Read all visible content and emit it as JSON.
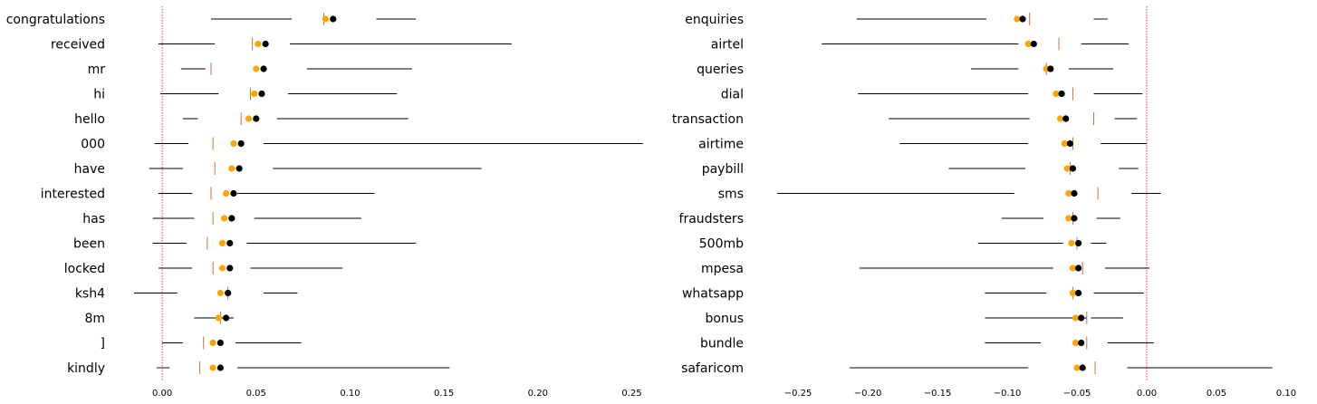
{
  "colors": {
    "mean_dot": "#000000",
    "alt_dot": "#ffa500",
    "median_tick": "#c8642a",
    "range_line": "#000000",
    "zero_line": "#ff0000"
  },
  "chart_data": [
    {
      "type": "dot-range",
      "title": "",
      "xlabel": "",
      "ylabel": "",
      "xlim": [
        -0.015,
        0.257
      ],
      "xticks": [
        0.0,
        0.05,
        0.1,
        0.15,
        0.2,
        0.25
      ],
      "xtick_labels": [
        "0.00",
        "0.05",
        "0.10",
        "0.15",
        "0.20",
        "0.25"
      ],
      "zero_line": 0,
      "grid": false,
      "rows": [
        {
          "label": "congratulations",
          "black": 0.091,
          "orange": 0.087,
          "median": 0.086,
          "segments": [
            [
              0.026,
              0.069
            ],
            [
              0.114,
              0.135
            ]
          ]
        },
        {
          "label": "received",
          "black": 0.055,
          "orange": 0.051,
          "median": 0.048,
          "segments": [
            [
              -0.002,
              0.028
            ],
            [
              0.068,
              0.186
            ]
          ]
        },
        {
          "label": "mr",
          "black": 0.054,
          "orange": 0.05,
          "median": 0.026,
          "segments": [
            [
              0.01,
              0.023
            ],
            [
              0.077,
              0.133
            ]
          ]
        },
        {
          "label": "hi",
          "black": 0.053,
          "orange": 0.049,
          "median": 0.047,
          "segments": [
            [
              -0.001,
              0.03
            ],
            [
              0.067,
              0.125
            ]
          ]
        },
        {
          "label": "hello",
          "black": 0.05,
          "orange": 0.046,
          "median": 0.042,
          "segments": [
            [
              0.011,
              0.019
            ],
            [
              0.061,
              0.131
            ]
          ]
        },
        {
          "label": "000",
          "black": 0.042,
          "orange": 0.038,
          "median": 0.027,
          "segments": [
            [
              -0.004,
              0.014
            ],
            [
              0.054,
              0.256
            ]
          ]
        },
        {
          "label": "have",
          "black": 0.041,
          "orange": 0.037,
          "median": 0.028,
          "segments": [
            [
              -0.007,
              0.011
            ],
            [
              0.059,
              0.17
            ]
          ]
        },
        {
          "label": "interested",
          "black": 0.038,
          "orange": 0.034,
          "median": 0.026,
          "segments": [
            [
              -0.002,
              0.016
            ],
            [
              0.04,
              0.113
            ]
          ]
        },
        {
          "label": "has",
          "black": 0.037,
          "orange": 0.033,
          "median": 0.027,
          "segments": [
            [
              -0.005,
              0.017
            ],
            [
              0.049,
              0.106
            ]
          ]
        },
        {
          "label": "been",
          "black": 0.036,
          "orange": 0.032,
          "median": 0.024,
          "segments": [
            [
              -0.005,
              0.013
            ],
            [
              0.045,
              0.135
            ]
          ]
        },
        {
          "label": "locked",
          "black": 0.036,
          "orange": 0.032,
          "median": 0.027,
          "segments": [
            [
              -0.002,
              0.016
            ],
            [
              0.047,
              0.096
            ]
          ]
        },
        {
          "label": "ksh4",
          "black": 0.035,
          "orange": 0.031,
          "median": 0.035,
          "segments": [
            [
              -0.015,
              0.008
            ],
            [
              0.054,
              0.072
            ]
          ]
        },
        {
          "label": "8m",
          "black": 0.034,
          "orange": 0.03,
          "median": 0.031,
          "segments": [
            [
              0.017,
              0.038
            ]
          ]
        },
        {
          "label": "]",
          "black": 0.031,
          "orange": 0.027,
          "median": 0.022,
          "segments": [
            [
              0.0,
              0.011
            ],
            [
              0.039,
              0.074
            ]
          ]
        },
        {
          "label": "kindly",
          "black": 0.031,
          "orange": 0.027,
          "median": 0.02,
          "segments": [
            [
              -0.003,
              0.004
            ],
            [
              0.04,
              0.153
            ]
          ]
        }
      ]
    },
    {
      "type": "dot-range",
      "title": "",
      "xlabel": "",
      "ylabel": "",
      "xlim": [
        -0.265,
        0.1
      ],
      "xticks": [
        -0.25,
        -0.2,
        -0.15,
        -0.1,
        -0.05,
        0.0,
        0.05,
        0.1
      ],
      "xtick_labels": [
        "−0.25",
        "−0.20",
        "−0.15",
        "−0.10",
        "−0.05",
        "0.00",
        "0.05",
        "0.10"
      ],
      "zero_line": 0,
      "grid": false,
      "rows": [
        {
          "label": "enquiries",
          "black": -0.089,
          "orange": -0.093,
          "median": -0.084,
          "segments": [
            [
              -0.208,
              -0.115
            ],
            [
              -0.038,
              -0.028
            ]
          ]
        },
        {
          "label": "airtel",
          "black": -0.081,
          "orange": -0.085,
          "median": -0.063,
          "segments": [
            [
              -0.233,
              -0.092
            ],
            [
              -0.047,
              -0.013
            ]
          ]
        },
        {
          "label": "queries",
          "black": -0.069,
          "orange": -0.072,
          "median": -0.072,
          "segments": [
            [
              -0.126,
              -0.092
            ],
            [
              -0.056,
              -0.024
            ]
          ]
        },
        {
          "label": "dial",
          "black": -0.061,
          "orange": -0.065,
          "median": -0.053,
          "segments": [
            [
              -0.207,
              -0.085
            ],
            [
              -0.038,
              -0.003
            ]
          ]
        },
        {
          "label": "transaction",
          "black": -0.058,
          "orange": -0.062,
          "median": -0.038,
          "segments": [
            [
              -0.185,
              -0.084
            ],
            [
              -0.023,
              -0.007
            ]
          ]
        },
        {
          "label": "airtime",
          "black": -0.055,
          "orange": -0.059,
          "median": -0.053,
          "segments": [
            [
              -0.177,
              -0.085
            ],
            [
              -0.033,
              0.0
            ]
          ]
        },
        {
          "label": "paybill",
          "black": -0.053,
          "orange": -0.057,
          "median": -0.055,
          "segments": [
            [
              -0.142,
              -0.087
            ],
            [
              -0.02,
              -0.006
            ]
          ]
        },
        {
          "label": "sms",
          "black": -0.052,
          "orange": -0.056,
          "median": -0.035,
          "segments": [
            [
              -0.265,
              -0.095
            ],
            [
              -0.011,
              0.01
            ]
          ]
        },
        {
          "label": "fraudsters",
          "black": -0.052,
          "orange": -0.056,
          "median": -0.053,
          "segments": [
            [
              -0.104,
              -0.074
            ],
            [
              -0.036,
              -0.019
            ]
          ]
        },
        {
          "label": "500mb",
          "black": -0.049,
          "orange": -0.054,
          "median": -0.05,
          "segments": [
            [
              -0.121,
              -0.06
            ],
            [
              -0.04,
              -0.029
            ]
          ]
        },
        {
          "label": "mpesa",
          "black": -0.049,
          "orange": -0.053,
          "median": -0.046,
          "segments": [
            [
              -0.206,
              -0.067
            ],
            [
              -0.03,
              0.002
            ]
          ]
        },
        {
          "label": "whatsapp",
          "black": -0.049,
          "orange": -0.053,
          "median": -0.053,
          "segments": [
            [
              -0.116,
              -0.072
            ],
            [
              -0.038,
              -0.002
            ]
          ]
        },
        {
          "label": "bonus",
          "black": -0.047,
          "orange": -0.051,
          "median": -0.043,
          "segments": [
            [
              -0.116,
              -0.043
            ],
            [
              -0.04,
              -0.017
            ]
          ]
        },
        {
          "label": "bundle",
          "black": -0.047,
          "orange": -0.051,
          "median": -0.043,
          "segments": [
            [
              -0.116,
              -0.076
            ],
            [
              -0.028,
              0.005
            ]
          ]
        },
        {
          "label": "safaricom",
          "black": -0.046,
          "orange": -0.05,
          "median": -0.037,
          "segments": [
            [
              -0.213,
              -0.085
            ],
            [
              -0.014,
              0.09
            ]
          ]
        }
      ]
    }
  ]
}
